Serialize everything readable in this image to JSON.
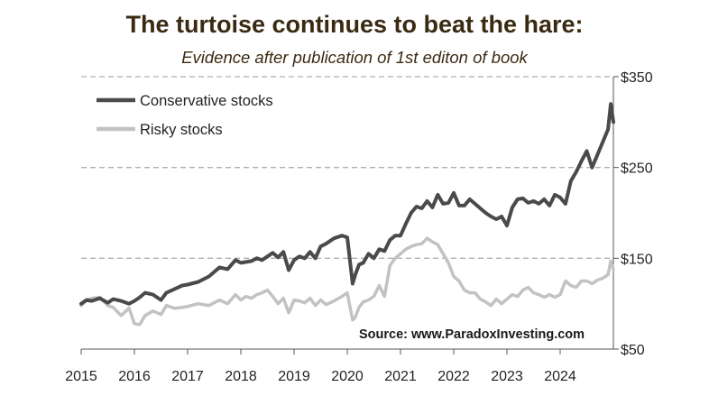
{
  "title": "The turtoise continues to beat the hare:",
  "subtitle": "Evidence after publication of 1st editon of book",
  "source": "Source: www.ParadoxInvesting.com",
  "colors": {
    "conservative": "#4a4a4a",
    "risky": "#c2c2c2",
    "grid": "#b0b0b0",
    "axis": "#555555"
  },
  "chart_data": {
    "type": "line",
    "title": "The turtoise continues to beat the hare:",
    "subtitle": "Evidence after publication of 1st editon of book",
    "xlabel": "",
    "ylabel": "",
    "xlim": [
      2015.0,
      2025.0
    ],
    "ylim": [
      50,
      350
    ],
    "y_axis_position": "right",
    "yticks": [
      50,
      150,
      250,
      350
    ],
    "ytick_labels": [
      "$50",
      "$150",
      "$250",
      "$350"
    ],
    "xticks": [
      2015,
      2016,
      2017,
      2018,
      2019,
      2020,
      2021,
      2022,
      2023,
      2024
    ],
    "xtick_labels": [
      "2015",
      "2016",
      "2017",
      "2018",
      "2019",
      "2020",
      "2021",
      "2022",
      "2023",
      "2024"
    ],
    "grid": "horizontal dashed",
    "legend_position": "top-left",
    "annotation": "Source: www.ParadoxInvesting.com",
    "series": [
      {
        "name": "Conservative stocks",
        "x": [
          2015.0,
          2015.1,
          2015.2,
          2015.35,
          2015.5,
          2015.6,
          2015.75,
          2015.9,
          2016.0,
          2016.1,
          2016.2,
          2016.35,
          2016.5,
          2016.6,
          2016.75,
          2016.9,
          2017.0,
          2017.2,
          2017.4,
          2017.6,
          2017.75,
          2017.9,
          2018.0,
          2018.1,
          2018.2,
          2018.3,
          2018.4,
          2018.5,
          2018.6,
          2018.7,
          2018.8,
          2018.9,
          2019.0,
          2019.1,
          2019.2,
          2019.3,
          2019.4,
          2019.5,
          2019.6,
          2019.75,
          2019.9,
          2020.0,
          2020.05,
          2020.1,
          2020.15,
          2020.22,
          2020.3,
          2020.4,
          2020.5,
          2020.6,
          2020.7,
          2020.8,
          2020.9,
          2021.0,
          2021.1,
          2021.2,
          2021.3,
          2021.4,
          2021.5,
          2021.6,
          2021.7,
          2021.8,
          2021.9,
          2022.0,
          2022.1,
          2022.2,
          2022.3,
          2022.4,
          2022.5,
          2022.6,
          2022.7,
          2022.8,
          2022.9,
          2023.0,
          2023.1,
          2023.2,
          2023.3,
          2023.4,
          2023.5,
          2023.6,
          2023.7,
          2023.8,
          2023.9,
          2024.0,
          2024.1,
          2024.2,
          2024.3,
          2024.4,
          2024.5,
          2024.6,
          2024.7,
          2024.8,
          2024.9,
          2024.95,
          2025.0
        ],
        "values": [
          100,
          104,
          103,
          106,
          101,
          105,
          103,
          100,
          103,
          107,
          112,
          110,
          104,
          112,
          116,
          120,
          121,
          124,
          130,
          140,
          138,
          148,
          145,
          146,
          147,
          150,
          148,
          152,
          156,
          151,
          157,
          137,
          148,
          152,
          150,
          157,
          150,
          163,
          166,
          172,
          175,
          173,
          148,
          122,
          132,
          143,
          145,
          155,
          150,
          160,
          158,
          170,
          175,
          175,
          188,
          200,
          207,
          205,
          213,
          206,
          220,
          210,
          211,
          222,
          208,
          208,
          215,
          210,
          205,
          200,
          196,
          193,
          196,
          186,
          206,
          215,
          216,
          211,
          213,
          210,
          215,
          208,
          220,
          217,
          210,
          235,
          245,
          257,
          268,
          250,
          264,
          278,
          292,
          320,
          300
        ]
      },
      {
        "name": "Risky stocks",
        "x": [
          2015.0,
          2015.1,
          2015.2,
          2015.35,
          2015.5,
          2015.6,
          2015.75,
          2015.9,
          2016.0,
          2016.1,
          2016.2,
          2016.35,
          2016.5,
          2016.6,
          2016.75,
          2016.9,
          2017.0,
          2017.2,
          2017.4,
          2017.6,
          2017.75,
          2017.9,
          2018.0,
          2018.1,
          2018.2,
          2018.3,
          2018.4,
          2018.5,
          2018.6,
          2018.7,
          2018.8,
          2018.9,
          2019.0,
          2019.1,
          2019.2,
          2019.3,
          2019.4,
          2019.5,
          2019.6,
          2019.75,
          2019.9,
          2020.0,
          2020.05,
          2020.1,
          2020.15,
          2020.22,
          2020.3,
          2020.4,
          2020.5,
          2020.6,
          2020.7,
          2020.8,
          2020.9,
          2021.0,
          2021.1,
          2021.2,
          2021.3,
          2021.4,
          2021.5,
          2021.6,
          2021.7,
          2021.8,
          2021.9,
          2022.0,
          2022.1,
          2022.2,
          2022.3,
          2022.4,
          2022.5,
          2022.6,
          2022.7,
          2022.8,
          2022.9,
          2023.0,
          2023.1,
          2023.2,
          2023.3,
          2023.4,
          2023.5,
          2023.6,
          2023.7,
          2023.8,
          2023.9,
          2024.0,
          2024.1,
          2024.2,
          2024.3,
          2024.4,
          2024.5,
          2024.6,
          2024.7,
          2024.8,
          2024.9,
          2024.95,
          2025.0
        ],
        "values": [
          98,
          104,
          106,
          107,
          98,
          96,
          87,
          95,
          78,
          77,
          87,
          92,
          88,
          98,
          95,
          96,
          97,
          100,
          98,
          104,
          100,
          110,
          104,
          108,
          106,
          110,
          112,
          115,
          108,
          100,
          106,
          90,
          104,
          103,
          101,
          106,
          98,
          104,
          99,
          103,
          108,
          112,
          97,
          82,
          85,
          96,
          102,
          104,
          108,
          120,
          108,
          142,
          150,
          155,
          160,
          163,
          165,
          166,
          172,
          168,
          165,
          155,
          145,
          130,
          125,
          115,
          112,
          112,
          105,
          102,
          98,
          105,
          100,
          105,
          110,
          108,
          115,
          118,
          112,
          110,
          107,
          110,
          107,
          110,
          125,
          120,
          118,
          125,
          125,
          122,
          126,
          128,
          132,
          147,
          138
        ]
      }
    ]
  }
}
